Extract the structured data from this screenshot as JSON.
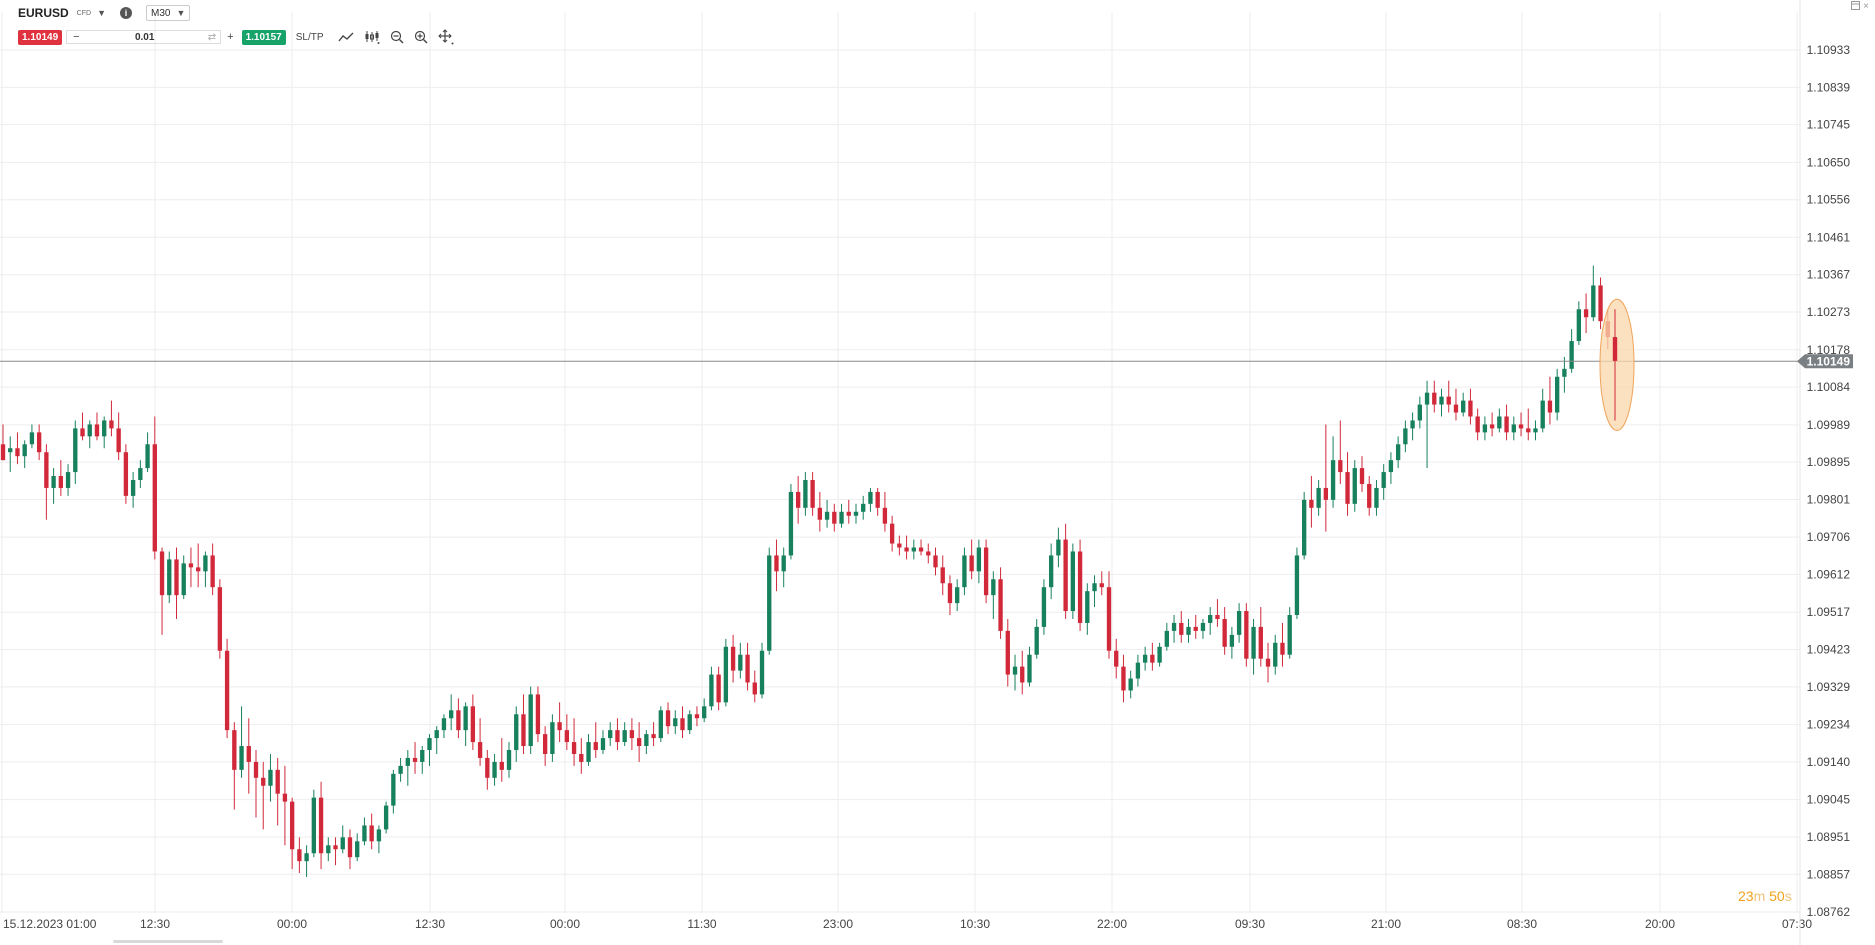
{
  "header": {
    "symbol": "EURUSD",
    "instrument_type": "CFD",
    "timeframe": "M30",
    "info_icon": "info-icon",
    "caret_icon": "chevron-down-icon"
  },
  "trade_bar": {
    "sell_price": "1.10149",
    "buy_price": "1.10157",
    "quantity": "0.01",
    "minus_label": "−",
    "plus_label": "+",
    "sltp_label": "SL/TP"
  },
  "window": {
    "restore_icon": "restore-icon",
    "close_label": "×"
  },
  "countdown": {
    "minutes": "23",
    "minutes_unit": "m",
    "seconds": "50",
    "seconds_unit": "s"
  },
  "colors": {
    "up": "#17805c",
    "down": "#d1293a",
    "grid": "#eeeeee",
    "price_line": "#8a8a8a",
    "current_price_bg": "#7a7f83",
    "highlight_fill": "#fbd7ab",
    "highlight_stroke": "#f0a45a"
  },
  "chart_data": {
    "type": "candlestick",
    "y_ticks": [
      "1.10933",
      "1.10839",
      "1.10745",
      "1.10650",
      "1.10556",
      "1.10461",
      "1.10367",
      "1.10273",
      "1.10178",
      "1.10084",
      "1.09989",
      "1.09895",
      "1.09801",
      "1.09706",
      "1.09612",
      "1.09517",
      "1.09423",
      "1.09329",
      "1.09234",
      "1.09140",
      "1.09045",
      "1.08951",
      "1.08857",
      "1.08762"
    ],
    "x_ticks": [
      "15.12.2023 01:00",
      "12:30",
      "00:00",
      "12:30",
      "00:00",
      "11:30",
      "23:00",
      "10:30",
      "22:00",
      "09:30",
      "21:00",
      "08:30",
      "20:00",
      "07:30"
    ],
    "ylim": [
      1.08762,
      1.1098
    ],
    "current_price": "1.10149",
    "candles": [
      [
        1.0994,
        1.0999,
        1.099,
        1.099
      ],
      [
        1.0992,
        1.0996,
        1.0987,
        1.0993
      ],
      [
        1.0993,
        1.0997,
        1.0989,
        1.0991
      ],
      [
        1.0991,
        1.0995,
        1.0988,
        1.0994
      ],
      [
        1.0994,
        1.0999,
        1.0993,
        1.0997
      ],
      [
        1.0997,
        1.0999,
        1.099,
        1.0992
      ],
      [
        1.0992,
        1.0994,
        1.0975,
        1.0983
      ],
      [
        1.0983,
        1.0988,
        1.0979,
        1.0986
      ],
      [
        1.0986,
        1.099,
        1.0981,
        1.0983
      ],
      [
        1.0983,
        1.0989,
        1.0981,
        1.0987
      ],
      [
        1.0987,
        1.1,
        1.0984,
        1.0998
      ],
      [
        1.0998,
        1.1002,
        1.0995,
        1.0996
      ],
      [
        1.0996,
        1.1,
        1.0993,
        1.0999
      ],
      [
        1.0999,
        1.1002,
        1.0995,
        1.0996
      ],
      [
        1.0996,
        1.1001,
        1.0993,
        1.1
      ],
      [
        1.1,
        1.1005,
        1.0996,
        1.0998
      ],
      [
        1.0998,
        1.1002,
        1.099,
        1.0992
      ],
      [
        1.0992,
        1.0994,
        1.0979,
        1.0981
      ],
      [
        1.0981,
        1.0987,
        1.0978,
        1.0985
      ],
      [
        1.0985,
        1.099,
        1.0983,
        1.0988
      ],
      [
        1.0988,
        1.0997,
        1.0987,
        1.0994
      ],
      [
        1.0994,
        1.1001,
        1.0965,
        1.0967
      ],
      [
        1.0967,
        1.0968,
        1.0946,
        1.0956
      ],
      [
        1.0956,
        1.0967,
        1.0954,
        1.0965
      ],
      [
        1.0965,
        1.0968,
        1.095,
        1.0956
      ],
      [
        1.0956,
        1.0966,
        1.0955,
        1.0964
      ],
      [
        1.0964,
        1.0968,
        1.0958,
        1.0963
      ],
      [
        1.0963,
        1.0969,
        1.0958,
        1.0962
      ],
      [
        1.0962,
        1.0967,
        1.0958,
        1.0966
      ],
      [
        1.0966,
        1.0969,
        1.0956,
        1.0958
      ],
      [
        1.0958,
        1.096,
        1.094,
        1.0942
      ],
      [
        1.0942,
        1.0945,
        1.092,
        1.0922
      ],
      [
        1.0922,
        1.0924,
        1.0902,
        1.0912
      ],
      [
        1.0912,
        1.0928,
        1.091,
        1.0918
      ],
      [
        1.0918,
        1.0925,
        1.0906,
        1.0914
      ],
      [
        1.0914,
        1.0917,
        1.09,
        1.091
      ],
      [
        1.091,
        1.0914,
        1.0897,
        1.0908
      ],
      [
        1.0908,
        1.0916,
        1.0904,
        1.0912
      ],
      [
        1.0912,
        1.0915,
        1.0898,
        1.0906
      ],
      [
        1.0906,
        1.0913,
        1.0893,
        1.0904
      ],
      [
        1.0904,
        1.0905,
        1.0887,
        1.0892
      ],
      [
        1.0892,
        1.0895,
        1.0886,
        1.0889
      ],
      [
        1.0889,
        1.0893,
        1.0885,
        1.0891
      ],
      [
        1.0891,
        1.0907,
        1.089,
        1.0905
      ],
      [
        1.0905,
        1.0909,
        1.0887,
        1.0891
      ],
      [
        1.0891,
        1.0895,
        1.0889,
        1.0893
      ],
      [
        1.0893,
        1.0895,
        1.0888,
        1.0892
      ],
      [
        1.0892,
        1.0898,
        1.0891,
        1.0895
      ],
      [
        1.0895,
        1.0897,
        1.0887,
        1.089
      ],
      [
        1.089,
        1.0896,
        1.0889,
        1.0894
      ],
      [
        1.0894,
        1.09,
        1.0893,
        1.0898
      ],
      [
        1.0898,
        1.0901,
        1.0892,
        1.0894
      ],
      [
        1.0894,
        1.0898,
        1.0891,
        1.0897
      ],
      [
        1.0897,
        1.0904,
        1.0896,
        1.0903
      ],
      [
        1.0903,
        1.0912,
        1.0901,
        1.0911
      ],
      [
        1.0911,
        1.0915,
        1.0909,
        1.0913
      ],
      [
        1.0913,
        1.0917,
        1.0908,
        1.0915
      ],
      [
        1.0915,
        1.0919,
        1.0911,
        1.0914
      ],
      [
        1.0914,
        1.0918,
        1.0911,
        1.0917
      ],
      [
        1.0917,
        1.0921,
        1.0913,
        1.092
      ],
      [
        1.092,
        1.0923,
        1.0916,
        1.0922
      ],
      [
        1.0922,
        1.0926,
        1.092,
        1.0925
      ],
      [
        1.0925,
        1.0931,
        1.0922,
        1.0927
      ],
      [
        1.0927,
        1.093,
        1.092,
        1.0922
      ],
      [
        1.0922,
        1.0929,
        1.0918,
        1.0928
      ],
      [
        1.0928,
        1.0931,
        1.0917,
        1.0919
      ],
      [
        1.0919,
        1.0925,
        1.0913,
        1.0915
      ],
      [
        1.0915,
        1.0917,
        1.0907,
        1.091
      ],
      [
        1.091,
        1.0916,
        1.0908,
        1.0914
      ],
      [
        1.0914,
        1.092,
        1.0909,
        1.0912
      ],
      [
        1.0912,
        1.0919,
        1.091,
        1.0917
      ],
      [
        1.0917,
        1.0928,
        1.0914,
        1.0926
      ],
      [
        1.0926,
        1.0931,
        1.0916,
        1.0918
      ],
      [
        1.0918,
        1.0933,
        1.0916,
        1.0931
      ],
      [
        1.0931,
        1.0933,
        1.0919,
        1.0921
      ],
      [
        1.0921,
        1.0923,
        1.0913,
        1.0916
      ],
      [
        1.0916,
        1.0926,
        1.0914,
        1.0924
      ],
      [
        1.0924,
        1.0929,
        1.0919,
        1.0922
      ],
      [
        1.0922,
        1.0926,
        1.0917,
        1.0919
      ],
      [
        1.0919,
        1.0925,
        1.0913,
        1.0916
      ],
      [
        1.0916,
        1.092,
        1.0911,
        1.0914
      ],
      [
        1.0914,
        1.0921,
        1.0913,
        1.0919
      ],
      [
        1.0919,
        1.0924,
        1.0915,
        1.0917
      ],
      [
        1.0917,
        1.0922,
        1.0916,
        1.092
      ],
      [
        1.092,
        1.0924,
        1.0918,
        1.0922
      ],
      [
        1.0922,
        1.0925,
        1.0917,
        1.0919
      ],
      [
        1.0919,
        1.0924,
        1.0918,
        1.0922
      ],
      [
        1.0922,
        1.0925,
        1.0917,
        1.092
      ],
      [
        1.092,
        1.0924,
        1.0914,
        1.0918
      ],
      [
        1.0918,
        1.0922,
        1.0916,
        1.0921
      ],
      [
        1.0921,
        1.0924,
        1.0918,
        1.092
      ],
      [
        1.092,
        1.0928,
        1.0919,
        1.0927
      ],
      [
        1.0927,
        1.0929,
        1.0921,
        1.0923
      ],
      [
        1.0923,
        1.0927,
        1.0921,
        1.0925
      ],
      [
        1.0925,
        1.0928,
        1.092,
        1.0922
      ],
      [
        1.0922,
        1.0927,
        1.0921,
        1.0926
      ],
      [
        1.0926,
        1.0928,
        1.0923,
        1.0925
      ],
      [
        1.0925,
        1.093,
        1.0924,
        1.0928
      ],
      [
        1.0928,
        1.0938,
        1.0927,
        1.0936
      ],
      [
        1.0936,
        1.0938,
        1.0927,
        1.0929
      ],
      [
        1.0929,
        1.0945,
        1.0928,
        1.0943
      ],
      [
        1.0943,
        1.0946,
        1.0934,
        1.0937
      ],
      [
        1.0937,
        1.0944,
        1.0935,
        1.0941
      ],
      [
        1.0941,
        1.0944,
        1.0932,
        1.0934
      ],
      [
        1.0934,
        1.0937,
        1.0929,
        1.0931
      ],
      [
        1.0931,
        1.0944,
        1.093,
        1.0942
      ],
      [
        1.0942,
        1.0968,
        1.0941,
        1.0966
      ],
      [
        1.0966,
        1.097,
        1.0957,
        1.0962
      ],
      [
        1.0962,
        1.0968,
        1.0958,
        1.0966
      ],
      [
        1.0966,
        1.0984,
        1.0965,
        1.0982
      ],
      [
        1.0982,
        1.0986,
        1.0974,
        1.0978
      ],
      [
        1.0978,
        1.0987,
        1.0976,
        1.0985
      ],
      [
        1.0985,
        1.0987,
        1.0976,
        1.0978
      ],
      [
        1.0978,
        1.0982,
        1.0972,
        1.0975
      ],
      [
        1.0975,
        1.098,
        1.0973,
        1.0977
      ],
      [
        1.0977,
        1.0979,
        1.0972,
        1.0974
      ],
      [
        1.0974,
        1.0979,
        1.0973,
        1.0977
      ],
      [
        1.0977,
        1.098,
        1.0974,
        1.0976
      ],
      [
        1.0976,
        1.0979,
        1.0974,
        1.0977
      ],
      [
        1.0977,
        1.0981,
        1.0975,
        1.0979
      ],
      [
        1.0979,
        1.0983,
        1.0977,
        1.0982
      ],
      [
        1.0982,
        1.0983,
        1.0976,
        1.0978
      ],
      [
        1.0978,
        1.0982,
        1.0972,
        1.0974
      ],
      [
        1.0974,
        1.0976,
        1.0967,
        1.0969
      ],
      [
        1.0969,
        1.0971,
        1.0966,
        1.0968
      ],
      [
        1.0968,
        1.0971,
        1.0965,
        1.0967
      ],
      [
        1.0967,
        1.097,
        1.0965,
        1.0968
      ],
      [
        1.0968,
        1.097,
        1.0966,
        1.0967
      ],
      [
        1.0967,
        1.0969,
        1.0964,
        1.0966
      ],
      [
        1.0966,
        1.0968,
        1.0961,
        1.0963
      ],
      [
        1.0963,
        1.0966,
        1.0956,
        1.0959
      ],
      [
        1.0959,
        1.0961,
        1.0951,
        1.0954
      ],
      [
        1.0954,
        1.096,
        1.0952,
        1.0958
      ],
      [
        1.0958,
        1.0968,
        1.0956,
        1.0966
      ],
      [
        1.0966,
        1.097,
        1.096,
        1.0962
      ],
      [
        1.0962,
        1.097,
        1.0959,
        1.0968
      ],
      [
        1.0968,
        1.097,
        1.0954,
        1.0956
      ],
      [
        1.0956,
        1.0962,
        1.095,
        1.096
      ],
      [
        1.096,
        1.0963,
        1.0945,
        1.0947
      ],
      [
        1.0947,
        1.095,
        1.0933,
        1.0936
      ],
      [
        1.0936,
        1.0941,
        1.0932,
        1.0938
      ],
      [
        1.0938,
        1.0942,
        1.0931,
        1.0934
      ],
      [
        1.0934,
        1.0943,
        1.0933,
        1.0941
      ],
      [
        1.0941,
        1.095,
        1.094,
        1.0948
      ],
      [
        1.0948,
        1.096,
        1.0946,
        1.0958
      ],
      [
        1.0958,
        1.0969,
        1.0955,
        1.0966
      ],
      [
        1.0966,
        1.0973,
        1.0963,
        1.097
      ],
      [
        1.097,
        1.0974,
        1.095,
        1.0952
      ],
      [
        1.0952,
        1.0969,
        1.095,
        1.0967
      ],
      [
        1.0967,
        1.097,
        1.0947,
        1.0949
      ],
      [
        1.0949,
        1.0959,
        1.0946,
        1.0957
      ],
      [
        1.0957,
        1.0961,
        1.0953,
        1.0959
      ],
      [
        1.0959,
        1.0962,
        1.0956,
        1.0958
      ],
      [
        1.0958,
        1.0962,
        1.094,
        1.0942
      ],
      [
        1.0942,
        1.0945,
        1.0935,
        1.0938
      ],
      [
        1.0938,
        1.0941,
        1.0929,
        1.0932
      ],
      [
        1.0932,
        1.0937,
        1.093,
        1.0935
      ],
      [
        1.0935,
        1.0941,
        1.0933,
        1.0939
      ],
      [
        1.0939,
        1.0943,
        1.0937,
        1.0941
      ],
      [
        1.0941,
        1.0944,
        1.0937,
        1.0939
      ],
      [
        1.0939,
        1.0944,
        1.0938,
        1.0943
      ],
      [
        1.0943,
        1.0949,
        1.0942,
        1.0947
      ],
      [
        1.0947,
        1.0951,
        1.0944,
        1.0949
      ],
      [
        1.0949,
        1.0952,
        1.0944,
        1.0946
      ],
      [
        1.0946,
        1.095,
        1.0944,
        1.0948
      ],
      [
        1.0948,
        1.0951,
        1.0945,
        1.0947
      ],
      [
        1.0947,
        1.095,
        1.0945,
        1.0949
      ],
      [
        1.0949,
        1.0953,
        1.0946,
        1.0951
      ],
      [
        1.0951,
        1.0955,
        1.0948,
        1.095
      ],
      [
        1.095,
        1.0953,
        1.0941,
        1.0943
      ],
      [
        1.0943,
        1.0948,
        1.094,
        1.0946
      ],
      [
        1.0946,
        1.0954,
        1.0944,
        1.0952
      ],
      [
        1.0952,
        1.0954,
        1.0938,
        1.094
      ],
      [
        1.094,
        1.095,
        1.0936,
        1.0948
      ],
      [
        1.0948,
        1.0953,
        1.0938,
        1.094
      ],
      [
        1.094,
        1.0944,
        1.0934,
        1.0938
      ],
      [
        1.0938,
        1.0946,
        1.0936,
        1.0944
      ],
      [
        1.0944,
        1.0949,
        1.0938,
        1.0941
      ],
      [
        1.0941,
        1.0953,
        1.094,
        1.0951
      ],
      [
        1.0951,
        1.0968,
        1.095,
        1.0966
      ],
      [
        1.0966,
        1.0982,
        1.0965,
        1.098
      ],
      [
        1.098,
        1.0986,
        1.0973,
        1.0978
      ],
      [
        1.0978,
        1.0985,
        1.0976,
        1.0983
      ],
      [
        1.0983,
        1.0999,
        1.0972,
        1.098
      ],
      [
        1.098,
        1.0996,
        1.0978,
        1.099
      ],
      [
        1.099,
        1.1,
        1.0984,
        1.0987
      ],
      [
        1.0987,
        1.0992,
        1.0976,
        1.0979
      ],
      [
        1.0979,
        1.099,
        1.0977,
        1.0988
      ],
      [
        1.0988,
        1.0991,
        1.0982,
        1.0984
      ],
      [
        1.0984,
        1.0986,
        1.0976,
        1.0978
      ],
      [
        1.0978,
        1.0985,
        1.0976,
        1.0983
      ],
      [
        1.0983,
        1.0989,
        1.098,
        1.0987
      ],
      [
        1.0987,
        1.0992,
        1.0984,
        1.099
      ],
      [
        1.099,
        1.0996,
        1.0988,
        1.0994
      ],
      [
        1.0994,
        1.1,
        1.0992,
        1.0998
      ],
      [
        1.0998,
        1.1002,
        1.0995,
        1.1
      ],
      [
        1.1,
        1.1006,
        1.0998,
        1.1004
      ],
      [
        1.1004,
        1.101,
        1.0988,
        1.1007
      ],
      [
        1.1007,
        1.101,
        1.1002,
        1.1004
      ],
      [
        1.1004,
        1.1008,
        1.1001,
        1.1006
      ],
      [
        1.1006,
        1.101,
        1.1002,
        1.1004
      ],
      [
        1.1004,
        1.1008,
        1.1,
        1.1002
      ],
      [
        1.1002,
        1.1007,
        1.1001,
        1.1005
      ],
      [
        1.1005,
        1.1008,
        1.0999,
        1.1001
      ],
      [
        1.1001,
        1.1003,
        1.0995,
        1.0997
      ],
      [
        1.0997,
        1.1001,
        1.0995,
        1.0999
      ],
      [
        1.0999,
        1.1002,
        1.0996,
        1.0998
      ],
      [
        1.0998,
        1.1003,
        1.0997,
        1.1001
      ],
      [
        1.1001,
        1.1004,
        1.0995,
        1.0997
      ],
      [
        1.0997,
        1.1001,
        1.0995,
        1.0999
      ],
      [
        1.0999,
        1.1002,
        1.0996,
        1.0998
      ],
      [
        1.0998,
        1.1003,
        1.0995,
        1.0997
      ],
      [
        1.0997,
        1.1,
        1.0995,
        1.0998
      ],
      [
        1.0998,
        1.1008,
        1.0997,
        1.1005
      ],
      [
        1.1005,
        1.1011,
        1.0999,
        1.1002
      ],
      [
        1.1002,
        1.1013,
        1.1,
        1.1011
      ],
      [
        1.1011,
        1.1016,
        1.1007,
        1.1013
      ],
      [
        1.1013,
        1.1023,
        1.1012,
        1.102
      ],
      [
        1.102,
        1.103,
        1.1019,
        1.1028
      ],
      [
        1.1028,
        1.1032,
        1.1022,
        1.1026
      ],
      [
        1.1026,
        1.1039,
        1.1025,
        1.1034
      ],
      [
        1.1034,
        1.1036,
        1.1023,
        1.1025
      ],
      [
        1.1025,
        1.1028,
        1.1018,
        1.1021
      ],
      [
        1.1021,
        1.1028,
        1.1,
        1.1015
      ]
    ]
  }
}
